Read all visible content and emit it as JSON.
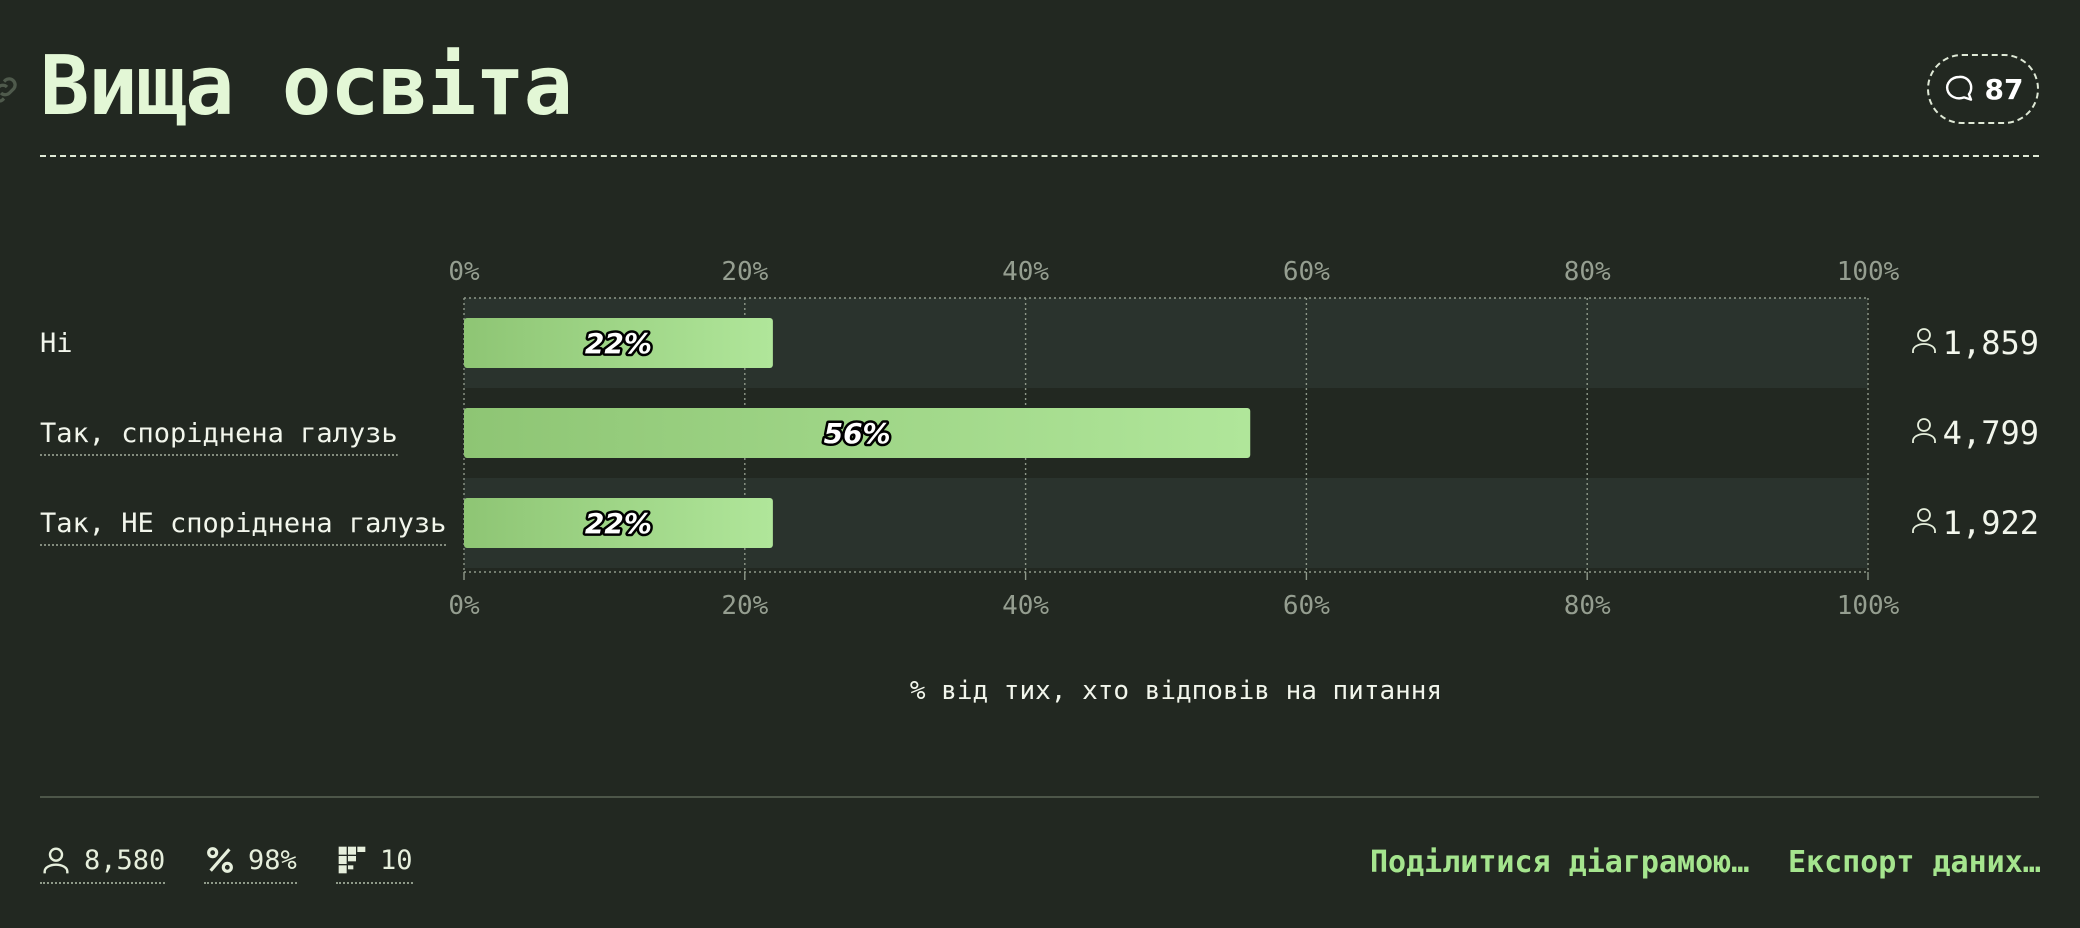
{
  "header": {
    "title": "Вища освіта",
    "comments_count": "87"
  },
  "chart_data": {
    "type": "bar",
    "orientation": "horizontal",
    "categories": [
      "Ні",
      "Так, споріднена галузь",
      "Так, НЕ споріднена галузь"
    ],
    "values": [
      22,
      56,
      22
    ],
    "value_labels": [
      "22%",
      "56%",
      "22%"
    ],
    "counts": [
      "1,859",
      "4,799",
      "1,922"
    ],
    "xlim": [
      0,
      100
    ],
    "ticks": [
      "0%",
      "20%",
      "40%",
      "60%",
      "80%",
      "100%"
    ],
    "xlabel": "% від тих, хто відповів на питання",
    "grid": true,
    "colors": {
      "bar_start": "#8ec574",
      "bar_end": "#b0e69a",
      "row_band": "#2a332d"
    }
  },
  "footer": {
    "respondents": "8,580",
    "percent_answered": "98%",
    "questions": "10",
    "share_label": "Поділитися діаграмою…",
    "export_label": "Експорт даних…"
  }
}
